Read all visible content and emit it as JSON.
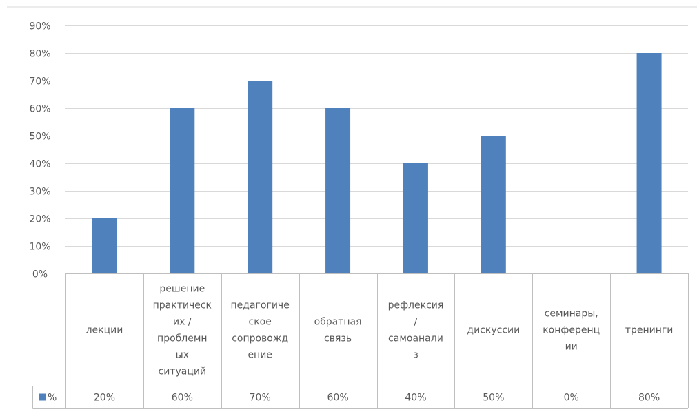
{
  "chart_data": {
    "type": "bar",
    "categories": [
      "лекции",
      "решение практических / проблемных ситуаций",
      "педагогическое сопровождение",
      "обратная связь",
      "рефлексия / самоанализ",
      "дискуссии",
      "семинары, конференции",
      "тренинги"
    ],
    "category_lines": [
      [
        "лекции"
      ],
      [
        "решение",
        "практическ",
        "их /",
        "проблемн",
        "ых",
        "ситуаций"
      ],
      [
        "педагогиче",
        "ское",
        "сопровожд",
        "ение"
      ],
      [
        "обратная",
        "связь"
      ],
      [
        "рефлексия",
        "/",
        "самоанали",
        "з"
      ],
      [
        "дискуссии"
      ],
      [
        "семинары,",
        "конференц",
        "ии"
      ],
      [
        "тренинги"
      ]
    ],
    "series": [
      {
        "name": "%",
        "values": [
          20,
          60,
          70,
          60,
          40,
          50,
          0,
          80
        ],
        "labels": [
          "20%",
          "60%",
          "70%",
          "60%",
          "40%",
          "50%",
          "0%",
          "80%"
        ],
        "color": "#4f81bd"
      }
    ],
    "y_ticks": [
      "0%",
      "10%",
      "20%",
      "30%",
      "40%",
      "50%",
      "60%",
      "70%",
      "80%",
      "90%"
    ],
    "ylim": [
      0,
      90
    ],
    "y_step": 10,
    "grid": true,
    "legend": "data-table",
    "grid_color": "#d9d9d9",
    "axis_color": "#bfbfbf"
  }
}
